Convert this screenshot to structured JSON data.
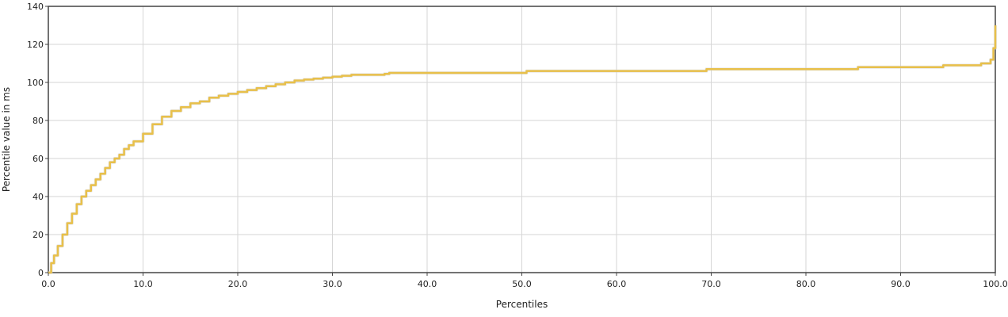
{
  "chart_data": {
    "type": "line",
    "title": "",
    "xlabel": "Percentiles",
    "ylabel": "Percentile value in ms",
    "xlim": [
      0,
      100
    ],
    "ylim": [
      0,
      140
    ],
    "grid": true,
    "x_ticks": [
      "0.0",
      "10.0",
      "20.0",
      "30.0",
      "40.0",
      "50.0",
      "60.0",
      "70.0",
      "80.0",
      "90.0",
      "100.0"
    ],
    "y_ticks": [
      "0",
      "20",
      "40",
      "60",
      "80",
      "100",
      "120",
      "140"
    ],
    "line_color": "#e8c04a",
    "series": [
      {
        "name": "",
        "x": [
          0,
          0.3,
          0.6,
          1.0,
          1.5,
          2.0,
          2.5,
          3.0,
          3.5,
          4.0,
          4.5,
          5.0,
          5.5,
          6.0,
          6.5,
          7.0,
          7.5,
          8.0,
          8.5,
          9.0,
          10.0,
          11.0,
          12.0,
          13.0,
          14.0,
          15.0,
          16.0,
          17.0,
          18.0,
          19.0,
          20.0,
          21.0,
          22.0,
          23.0,
          24.0,
          25.0,
          26.0,
          27.0,
          28.0,
          29.0,
          30.0,
          31.0,
          32.0,
          33.0,
          35.5,
          36.0,
          40.0,
          45.0,
          50.0,
          50.5,
          60.0,
          69.0,
          69.5,
          80.0,
          85.0,
          85.5,
          90.0,
          94.0,
          94.5,
          97.5,
          98.5,
          99.0,
          99.5,
          99.8,
          100.0
        ],
        "y": [
          0,
          5,
          9,
          14,
          20,
          26,
          31,
          36,
          40,
          43,
          46,
          49,
          52,
          55,
          58,
          60,
          62,
          65,
          67,
          69,
          73,
          78,
          82,
          85,
          87,
          89,
          90,
          92,
          93,
          94,
          95,
          96,
          97,
          98,
          99,
          100,
          101,
          101.5,
          102,
          102.5,
          103,
          103.5,
          104,
          104,
          104.5,
          105,
          105,
          105,
          105,
          106,
          106,
          106,
          107,
          107,
          107,
          108,
          108,
          108,
          109,
          109,
          110,
          110,
          112,
          118,
          130
        ]
      }
    ]
  }
}
